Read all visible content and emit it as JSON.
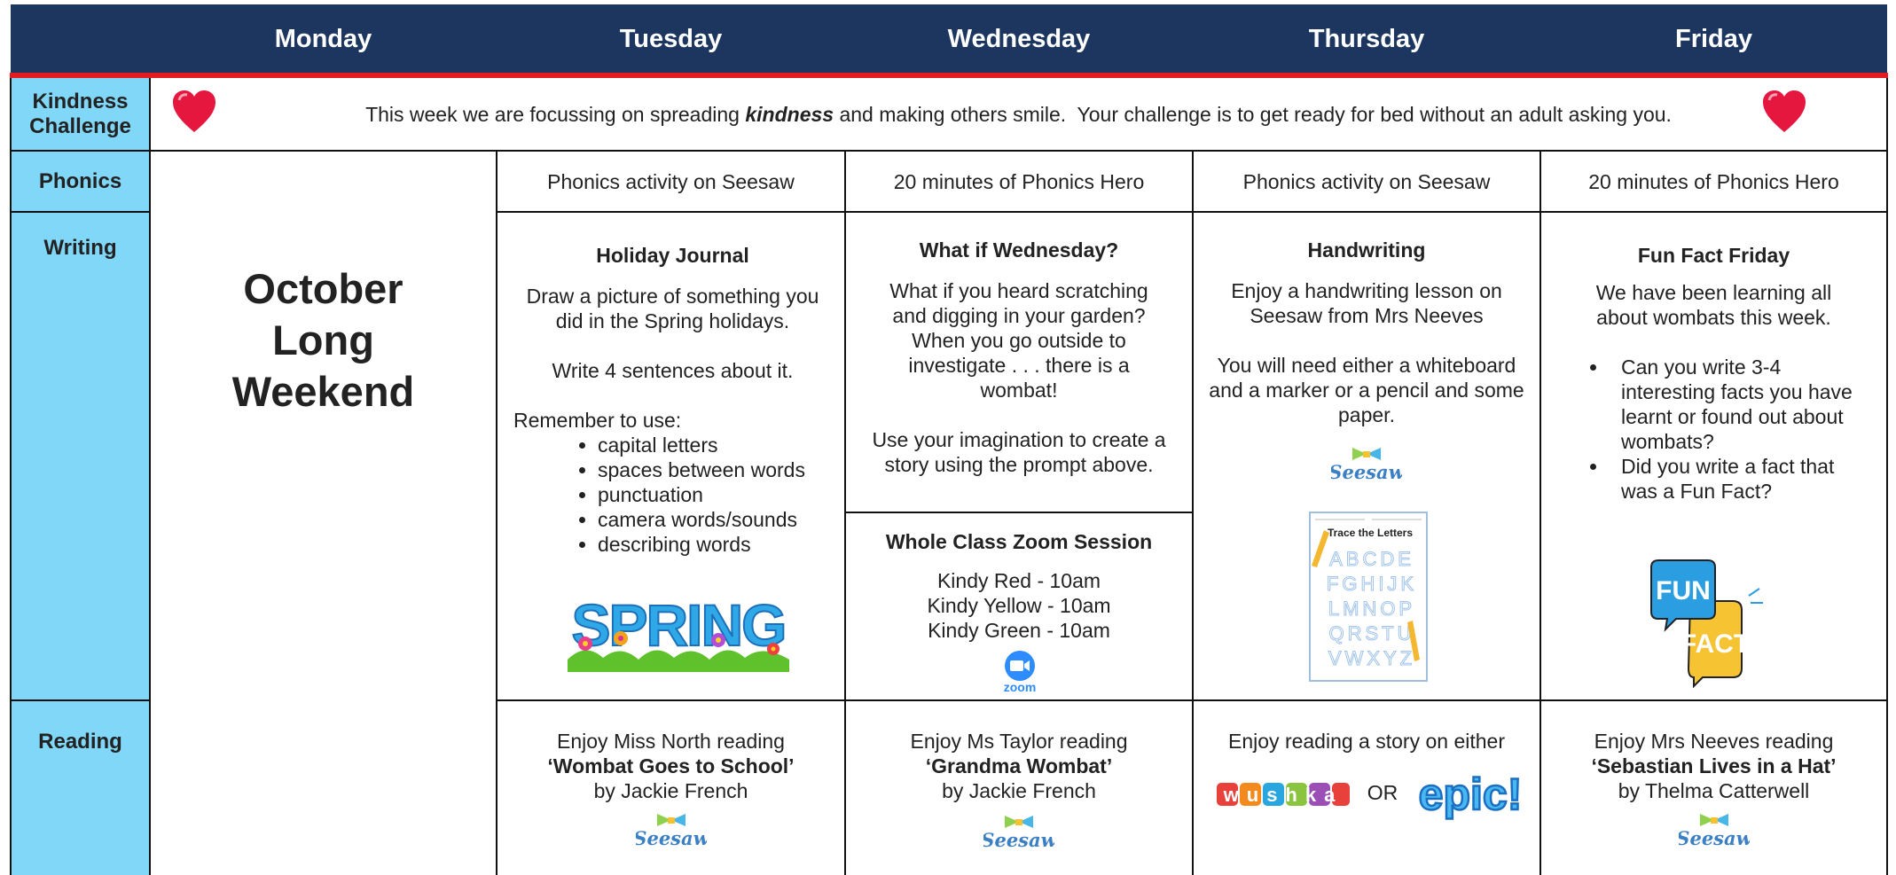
{
  "header": {
    "days": [
      "Monday",
      "Tuesday",
      "Wednesday",
      "Thursday",
      "Friday"
    ]
  },
  "kindness": {
    "label": "Kindness Challenge",
    "text_before": "This week we are focussing on spreading ",
    "emphasis": "kindness",
    "text_after": " and making others smile.  Your challenge is to get ready for bed without an adult asking you."
  },
  "monday": {
    "lines": [
      "October",
      "Long",
      "Weekend"
    ]
  },
  "phonics": {
    "label": "Phonics",
    "tuesday": "Phonics activity on Seesaw",
    "wednesday": "20 minutes of Phonics Hero",
    "thursday": "Phonics activity on Seesaw",
    "friday": "20 minutes of Phonics Hero"
  },
  "writing": {
    "label": "Writing",
    "tuesday": {
      "title": "Holiday Journal",
      "paragraphs": [
        "Draw a picture of something you did in the Spring holidays.",
        "Write 4 sentences about it."
      ],
      "list_intro": "Remember to use:",
      "bullets": [
        "capital letters",
        "spaces between words",
        "punctuation",
        "camera words/sounds",
        "describing words"
      ],
      "logo": "SPRING"
    },
    "wednesday": {
      "title": "What if Wednesday?",
      "paragraphs": [
        "What if you heard scratching and digging in your garden? When you go outside to investigate . . . there is a wombat!",
        "Use your imagination to create a story using the prompt above."
      ],
      "zoom_title": "Whole Class Zoom Session",
      "zoom_lines": [
        "Kindy Red - 10am",
        "Kindy Yellow - 10am",
        "Kindy Green - 10am"
      ],
      "logo": "zoom"
    },
    "thursday": {
      "title": "Handwriting",
      "paragraphs": [
        "Enjoy a handwriting lesson on Seesaw from Mrs Neeves",
        "You will need either a whiteboard and a marker or a pencil and some paper."
      ],
      "logo": "Seesaw",
      "worksheet_title": "Trace the Letters",
      "worksheet_rows": [
        "ABCDE",
        "FGHIJK",
        "LMNOP",
        "QRSTU",
        "VWXYZ"
      ]
    },
    "friday": {
      "title": "Fun Fact Friday",
      "paragraph": "We have been learning all about wombats this week.",
      "bullets": [
        "Can you write 3-4 interesting facts you have learnt or found out about wombats?",
        "Did you write a fact that was a Fun Fact?"
      ],
      "logo_top": "FUN",
      "logo_bottom": "FACT"
    }
  },
  "reading": {
    "label": "Reading",
    "tuesday": {
      "intro": "Enjoy Miss North reading",
      "book": "‘Wombat Goes to School’",
      "author": "by Jackie French",
      "logo": "Seesaw"
    },
    "wednesday": {
      "intro": "Enjoy Ms Taylor reading",
      "book": "‘Grandma Wombat’",
      "author": "by Jackie French",
      "logo": "Seesaw"
    },
    "thursday": {
      "intro": "Enjoy reading a story on either",
      "logo_left": "wushka",
      "connector": "OR",
      "logo_right": "epic!"
    },
    "friday": {
      "intro": "Enjoy Mrs Neeves reading",
      "book": "‘Sebastian Lives in a Hat’",
      "author": "by Thelma Catterwell",
      "logo": "Seesaw"
    }
  }
}
